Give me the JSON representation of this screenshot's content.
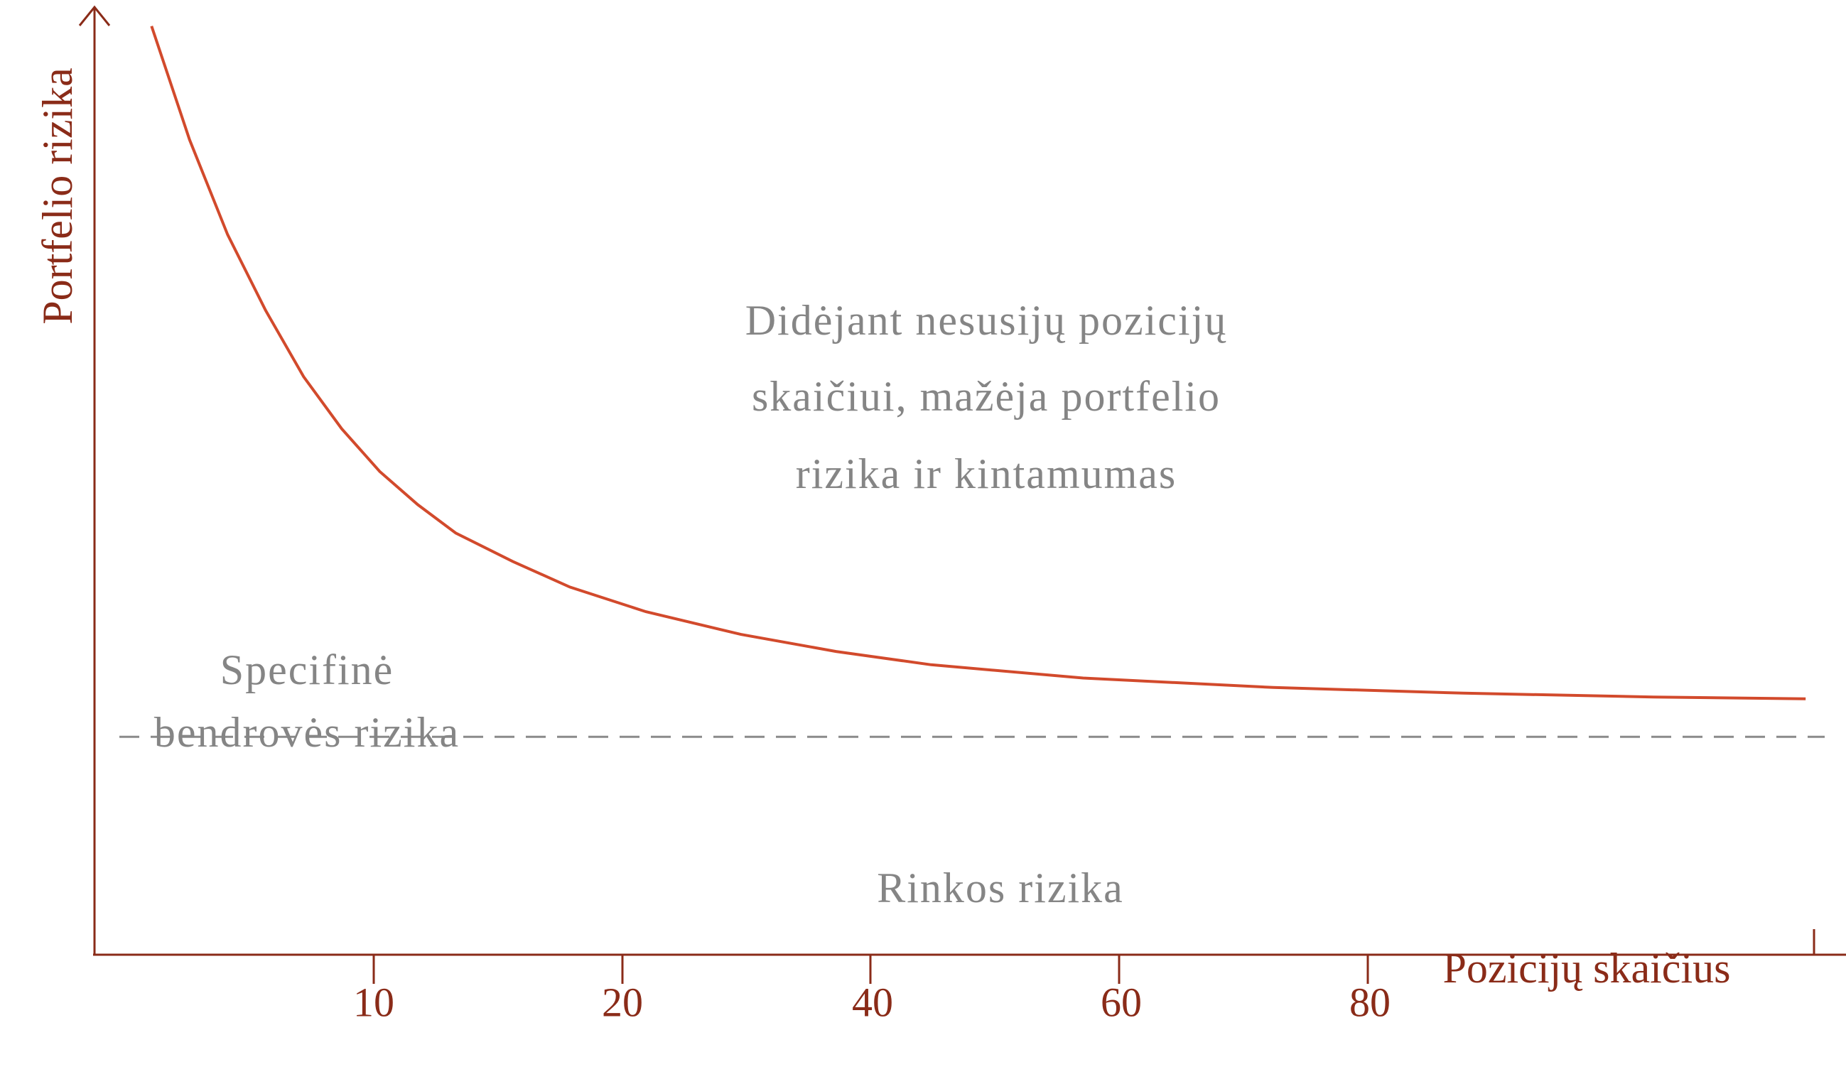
{
  "chart_data": {
    "type": "line",
    "title": "",
    "xlabel": "Pozicijų skaičius",
    "ylabel": "Portfelio rizika",
    "x_ticks": [
      "10",
      "20",
      "40",
      "60",
      "80"
    ],
    "series": [
      {
        "x": [
          1,
          3,
          5,
          7,
          9,
          11,
          13,
          15,
          17,
          20,
          23,
          27,
          32,
          37,
          42,
          50,
          60,
          70,
          80,
          88
        ],
        "y": [
          98,
          86,
          76,
          68,
          61,
          55.5,
          51,
          47.5,
          44.5,
          41.5,
          38.8,
          36.2,
          33.8,
          32,
          30.6,
          29.2,
          28.2,
          27.6,
          27.2,
          27.0
        ]
      }
    ],
    "reference_line": {
      "y": 23,
      "style": "dashed"
    },
    "xlim": [
      -2,
      89
    ],
    "ylim": [
      0,
      100
    ],
    "grid": false,
    "legend": "none",
    "annotations": {
      "diversification": [
        "Didėjant nesusijų pozicijų",
        "skaičiui, mažėja portfelio",
        "rizika ir kintamumas"
      ],
      "specific_risk": [
        "Specifinė",
        "bendrovės rizika"
      ],
      "market_risk": "Rinkos rizika"
    },
    "colors": {
      "curve": "#d24a2c",
      "axis": "#8a2b18",
      "annotation_text": "#858585",
      "dashed_line": "#8a8a8a"
    }
  }
}
